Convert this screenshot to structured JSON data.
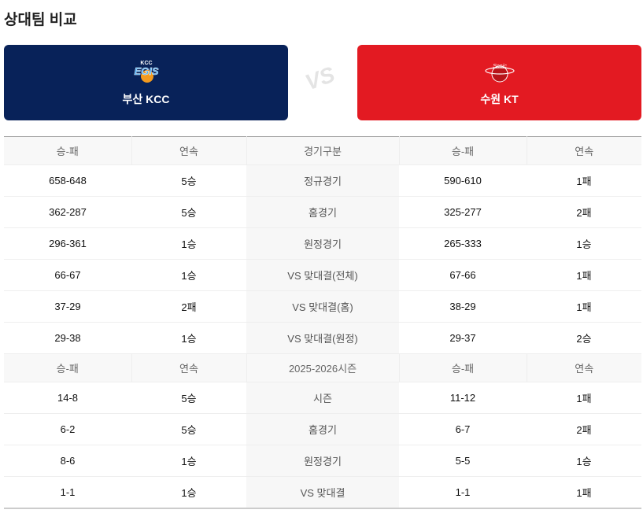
{
  "title": "상대팀 비교",
  "home_team": {
    "name": "부산 KCC",
    "logo": "kcc-egis-logo",
    "logo_text": "KCC EGIS",
    "color": "#082259"
  },
  "away_team": {
    "name": "수원 KT",
    "logo": "kt-sonicboom-logo",
    "logo_text": "kt Sonicboom",
    "color": "#e31a22"
  },
  "vs_label": "VS",
  "section1": {
    "headers": [
      "승-패",
      "연속",
      "경기구분",
      "승-패",
      "연속"
    ],
    "rows": [
      [
        "658-648",
        "5승",
        "정규경기",
        "590-610",
        "1패"
      ],
      [
        "362-287",
        "5승",
        "홈경기",
        "325-277",
        "2패"
      ],
      [
        "296-361",
        "1승",
        "원정경기",
        "265-333",
        "1승"
      ],
      [
        "66-67",
        "1승",
        "VS 맞대결(전체)",
        "67-66",
        "1패"
      ],
      [
        "37-29",
        "2패",
        "VS 맞대결(홈)",
        "38-29",
        "1패"
      ],
      [
        "29-38",
        "1승",
        "VS 맞대결(원정)",
        "29-37",
        "2승"
      ]
    ]
  },
  "section2": {
    "headers": [
      "승-패",
      "연속",
      "2025-2026시즌",
      "승-패",
      "연속"
    ],
    "rows": [
      [
        "14-8",
        "5승",
        "시즌",
        "11-12",
        "1패"
      ],
      [
        "6-2",
        "5승",
        "홈경기",
        "6-7",
        "2패"
      ],
      [
        "8-6",
        "1승",
        "원정경기",
        "5-5",
        "1승"
      ],
      [
        "1-1",
        "1승",
        "VS 맞대결",
        "1-1",
        "1패"
      ]
    ]
  }
}
